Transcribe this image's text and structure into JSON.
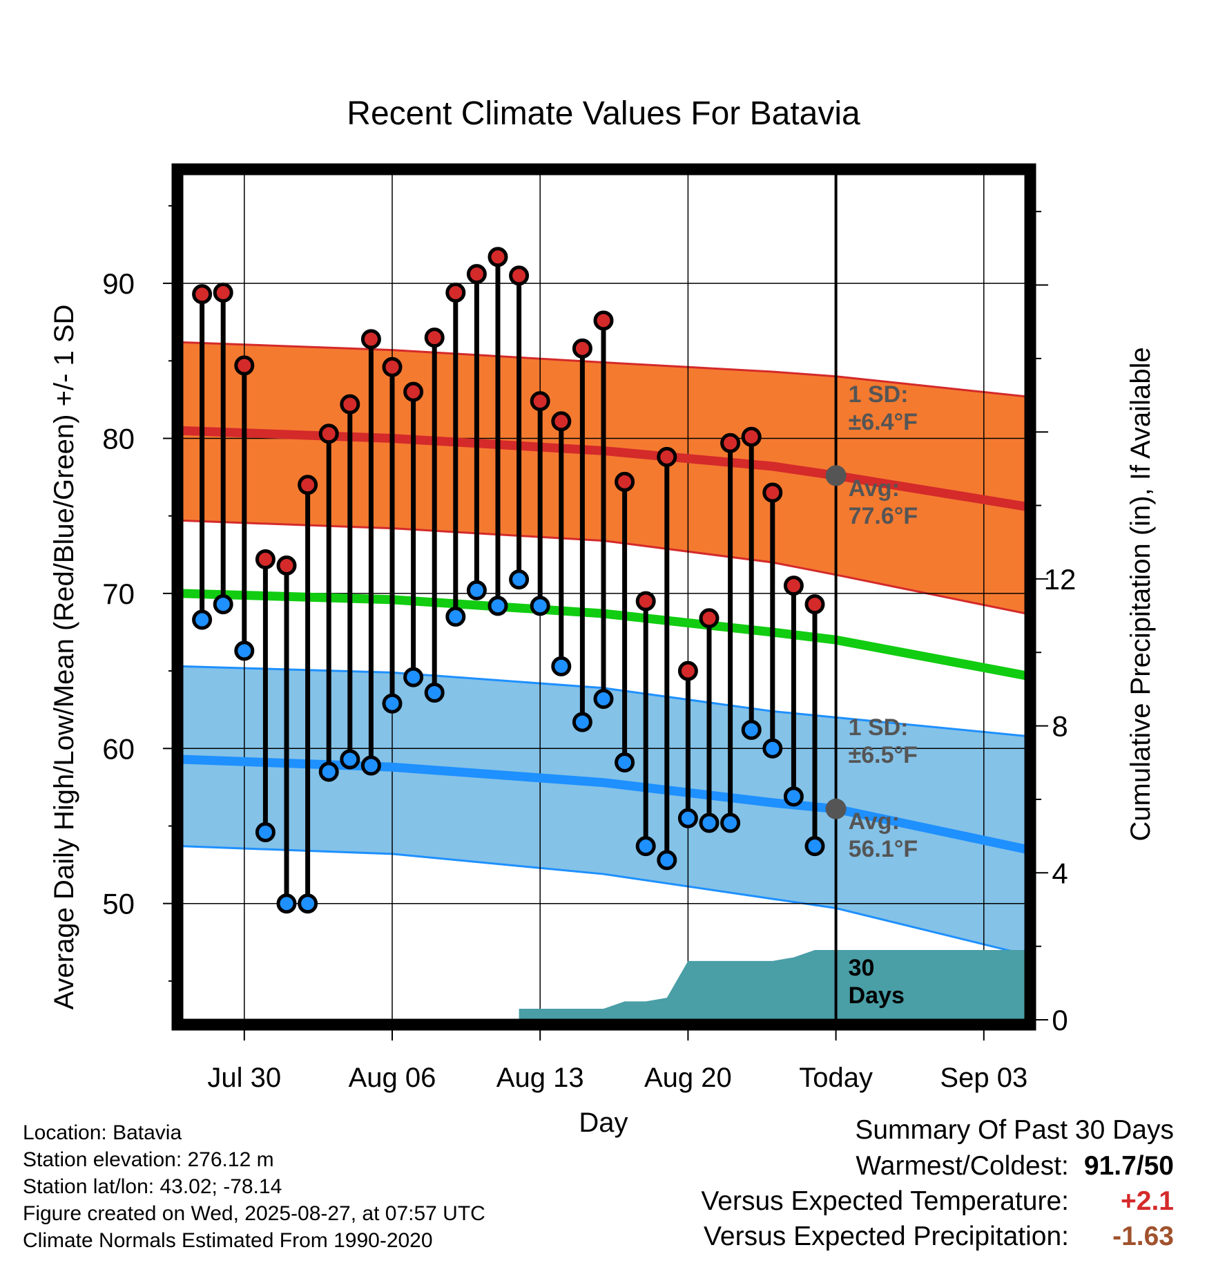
{
  "chart_data": {
    "type": "line",
    "title": "Recent Climate Values For Batavia",
    "xlabel": "Day",
    "ylabel_left": "Average Daily High/Low/Mean (Red/Blue/Green) +/- 1 SD",
    "ylabel_right": "Cumulative Precipitation (in), If Available",
    "ylim_left": [
      42.5,
      97
    ],
    "ylim_right": [
      0,
      23
    ],
    "yticks_left": [
      50,
      60,
      70,
      80,
      90
    ],
    "yticks_right": [
      0,
      4,
      8,
      12
    ],
    "grid": true,
    "x_start": "2025-07-27",
    "x_end": "2025-09-05",
    "x_ticks": [
      {
        "date": "2025-07-30",
        "label": "Jul 30"
      },
      {
        "date": "2025-08-06",
        "label": "Aug 06"
      },
      {
        "date": "2025-08-13",
        "label": "Aug 13"
      },
      {
        "date": "2025-08-20",
        "label": "Aug 20"
      },
      {
        "date": "2025-08-27",
        "label": "Today"
      },
      {
        "date": "2025-09-03",
        "label": "Sep 03"
      }
    ],
    "today": "2025-08-27",
    "days": [
      "2025-07-28",
      "2025-07-29",
      "2025-07-30",
      "2025-07-31",
      "2025-08-01",
      "2025-08-02",
      "2025-08-03",
      "2025-08-04",
      "2025-08-05",
      "2025-08-06",
      "2025-08-07",
      "2025-08-08",
      "2025-08-09",
      "2025-08-10",
      "2025-08-11",
      "2025-08-12",
      "2025-08-13",
      "2025-08-14",
      "2025-08-15",
      "2025-08-16",
      "2025-08-17",
      "2025-08-18",
      "2025-08-19",
      "2025-08-20",
      "2025-08-21",
      "2025-08-22",
      "2025-08-23",
      "2025-08-24",
      "2025-08-25",
      "2025-08-26"
    ],
    "series": [
      {
        "name": "High",
        "values": [
          89.3,
          89.4,
          84.7,
          72.2,
          71.8,
          77.0,
          80.3,
          82.2,
          86.4,
          84.6,
          83.0,
          86.5,
          89.4,
          90.6,
          91.7,
          90.5,
          82.4,
          81.1,
          85.8,
          87.6,
          77.2,
          69.5,
          78.8,
          65.0,
          68.4,
          79.7,
          80.1,
          76.5,
          70.5,
          69.3
        ]
      },
      {
        "name": "Low",
        "values": [
          68.3,
          69.3,
          66.3,
          54.6,
          50.0,
          50.0,
          58.5,
          59.3,
          58.9,
          62.9,
          64.6,
          63.6,
          68.5,
          70.2,
          69.2,
          70.9,
          69.2,
          65.3,
          61.7,
          63.2,
          59.1,
          53.7,
          52.8,
          55.5,
          55.2,
          55.2,
          61.2,
          60.0,
          56.9,
          53.7
        ]
      }
    ],
    "normals": {
      "dates": [
        "2025-07-27",
        "2025-08-06",
        "2025-08-16",
        "2025-08-24",
        "2025-08-27",
        "2025-09-05"
      ],
      "avg_high": [
        80.5,
        80.0,
        79.2,
        78.2,
        77.6,
        75.6
      ],
      "high_upper": [
        86.2,
        85.7,
        84.9,
        84.3,
        84.0,
        82.7
      ],
      "high_lower": [
        74.7,
        74.2,
        73.4,
        72.0,
        71.2,
        68.7
      ],
      "avg_mean": [
        70.0,
        69.6,
        68.7,
        67.5,
        67.0,
        64.7
      ],
      "avg_low": [
        59.3,
        58.8,
        57.8,
        56.5,
        56.1,
        53.5
      ],
      "low_upper": [
        65.3,
        64.9,
        63.9,
        62.4,
        62.0,
        60.8
      ],
      "low_lower": [
        53.7,
        53.2,
        51.9,
        50.3,
        49.7,
        46.7
      ]
    },
    "precip_cumulative": {
      "dates": [
        "2025-07-27",
        "2025-08-12",
        "2025-08-12",
        "2025-08-16",
        "2025-08-17",
        "2025-08-18",
        "2025-08-19",
        "2025-08-20",
        "2025-08-24",
        "2025-08-25",
        "2025-08-26",
        "2025-09-05"
      ],
      "values": [
        0,
        0,
        0.3,
        0.3,
        0.5,
        0.5,
        0.6,
        1.6,
        1.6,
        1.7,
        1.9,
        1.9
      ]
    },
    "annotations": {
      "high_sd": [
        "1 SD:",
        "±6.4°F"
      ],
      "high_avg": [
        "Avg:",
        "77.6°F"
      ],
      "low_sd": [
        "1 SD:",
        "±6.5°F"
      ],
      "low_avg": [
        "Avg:",
        "56.1°F"
      ],
      "precip_label": [
        "30",
        "Days"
      ]
    },
    "x_tick_labels": [
      "Jul 30",
      "Aug 06",
      "Aug 13",
      "Aug 20",
      "Today",
      "Sep 03"
    ],
    "y_tick_labels_left": [
      "50",
      "60",
      "70",
      "80",
      "90"
    ],
    "y_tick_labels_right": [
      "0",
      "4",
      "8",
      "12"
    ]
  },
  "info": {
    "location": "Location: Batavia",
    "elevation": "Station elevation: 276.12 m",
    "latlon": "Station lat/lon: 43.02; -78.14",
    "created": "Figure created on Wed, 2025-08-27, at 07:57 UTC",
    "normals": "Climate Normals Estimated From 1990-2020"
  },
  "summary": {
    "title": "Summary Of Past 30 Days",
    "warmest_label": "Warmest/Coldest:",
    "warmest_value": "91.7/50",
    "temp_label": "Versus Expected Temperature:",
    "temp_value": "+2.1",
    "precip_label": "Versus Expected Precipitation:",
    "precip_value": "-1.63"
  },
  "colors": {
    "high_band": "#f47a30",
    "high_line": "#d42a2a",
    "high_dot": "#d42a2a",
    "low_band": "#84c2e8",
    "low_line": "#1e90ff",
    "low_dot": "#1e90ff",
    "mean_line": "#11cc11",
    "precip": "#4a9ea6",
    "annotation": "#555555",
    "temp_value": "#d42a2a",
    "precip_value": "#a0522d"
  }
}
